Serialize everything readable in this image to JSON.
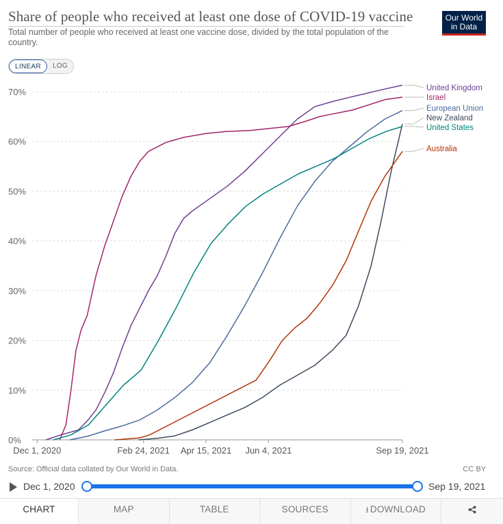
{
  "header": {
    "title": "Share of people who received at least one dose of COVID-19 vaccine",
    "subtitle": "Total number of people who received at least one vaccine dose, divided by the total population of the country.",
    "logo_line1": "Our World",
    "logo_line2": "in Data"
  },
  "scale": {
    "linear_label": "LINEAR",
    "log_label": "LOG",
    "selected": "linear"
  },
  "chart_data": {
    "type": "line",
    "title": "Share of people who received at least one dose of COVID-19 vaccine",
    "xlabel": "",
    "ylabel": "",
    "x_range": [
      "2020-11-27",
      "2021-09-19"
    ],
    "ylim": [
      0,
      70
    ],
    "y_ticks": [
      0,
      10,
      20,
      30,
      40,
      50,
      60,
      70
    ],
    "y_tick_labels": [
      "0%",
      "10%",
      "20%",
      "30%",
      "40%",
      "50%",
      "60%",
      "70%"
    ],
    "x_ticks": [
      "2020-12-01",
      "2021-02-24",
      "2021-04-15",
      "2021-06-04",
      "2021-09-19"
    ],
    "x_tick_labels": [
      "Dec 1, 2020",
      "Feb 24, 2021",
      "Apr 15, 2021",
      "Jun 4, 2021",
      "Sep 19, 2021"
    ],
    "grid": "horizontal dashed",
    "legend": "right, labels at line ends",
    "series": [
      {
        "name": "United Kingdom",
        "color": "#6d3e91",
        "points": [
          [
            "2020-12-08",
            0
          ],
          [
            "2020-12-20",
            1.0
          ],
          [
            "2021-01-03",
            2.0
          ],
          [
            "2021-01-10",
            3.8
          ],
          [
            "2021-01-17",
            6.0
          ],
          [
            "2021-01-24",
            9.5
          ],
          [
            "2021-01-31",
            13.5
          ],
          [
            "2021-02-07",
            18.5
          ],
          [
            "2021-02-14",
            23.0
          ],
          [
            "2021-02-21",
            26.5
          ],
          [
            "2021-02-28",
            30.0
          ],
          [
            "2021-03-07",
            33.0
          ],
          [
            "2021-03-14",
            37.0
          ],
          [
            "2021-03-21",
            41.5
          ],
          [
            "2021-03-28",
            44.5
          ],
          [
            "2021-04-04",
            46.0
          ],
          [
            "2021-04-18",
            48.5
          ],
          [
            "2021-05-02",
            51.0
          ],
          [
            "2021-05-16",
            54.0
          ],
          [
            "2021-05-30",
            57.5
          ],
          [
            "2021-06-13",
            61.0
          ],
          [
            "2021-06-27",
            64.5
          ],
          [
            "2021-07-11",
            67.0
          ],
          [
            "2021-07-25",
            68.0
          ],
          [
            "2021-08-15",
            69.3
          ],
          [
            "2021-09-01",
            70.3
          ],
          [
            "2021-09-19",
            71.3
          ]
        ]
      },
      {
        "name": "Israel",
        "color": "#a2246b",
        "points": [
          [
            "2020-12-19",
            0
          ],
          [
            "2020-12-24",
            3.0
          ],
          [
            "2020-12-28",
            10.0
          ],
          [
            "2021-01-01",
            18.0
          ],
          [
            "2021-01-05",
            22.0
          ],
          [
            "2021-01-10",
            25.0
          ],
          [
            "2021-01-17",
            33.0
          ],
          [
            "2021-01-24",
            39.0
          ],
          [
            "2021-01-31",
            44.0
          ],
          [
            "2021-02-07",
            49.0
          ],
          [
            "2021-02-14",
            53.0
          ],
          [
            "2021-02-21",
            56.0
          ],
          [
            "2021-02-28",
            58.0
          ],
          [
            "2021-03-14",
            59.8
          ],
          [
            "2021-03-28",
            60.8
          ],
          [
            "2021-04-15",
            61.6
          ],
          [
            "2021-05-01",
            62.0
          ],
          [
            "2021-05-20",
            62.2
          ],
          [
            "2021-06-01",
            62.5
          ],
          [
            "2021-06-20",
            63.0
          ],
          [
            "2021-07-03",
            64.0
          ],
          [
            "2021-07-15",
            65.0
          ],
          [
            "2021-07-25",
            65.5
          ],
          [
            "2021-08-10",
            66.3
          ],
          [
            "2021-08-25",
            67.5
          ],
          [
            "2021-09-05",
            68.4
          ],
          [
            "2021-09-19",
            68.9
          ]
        ]
      },
      {
        "name": "European Union",
        "color": "#4c6a9c",
        "points": [
          [
            "2020-12-27",
            0
          ],
          [
            "2021-01-10",
            0.7
          ],
          [
            "2021-01-24",
            1.8
          ],
          [
            "2021-02-07",
            2.8
          ],
          [
            "2021-02-21",
            4.0
          ],
          [
            "2021-03-07",
            6.0
          ],
          [
            "2021-03-21",
            8.5
          ],
          [
            "2021-04-04",
            11.5
          ],
          [
            "2021-04-18",
            15.5
          ],
          [
            "2021-05-02",
            21.0
          ],
          [
            "2021-05-16",
            27.0
          ],
          [
            "2021-05-30",
            33.5
          ],
          [
            "2021-06-13",
            40.5
          ],
          [
            "2021-06-27",
            47.0
          ],
          [
            "2021-07-11",
            52.0
          ],
          [
            "2021-07-25",
            56.0
          ],
          [
            "2021-08-08",
            59.0
          ],
          [
            "2021-08-22",
            62.0
          ],
          [
            "2021-09-05",
            64.5
          ],
          [
            "2021-09-19",
            66.2
          ]
        ]
      },
      {
        "name": "New Zealand",
        "color": "#3b4a5e",
        "points": [
          [
            "2021-02-20",
            0
          ],
          [
            "2021-03-07",
            0.3
          ],
          [
            "2021-03-21",
            0.8
          ],
          [
            "2021-04-04",
            2.0
          ],
          [
            "2021-04-18",
            3.5
          ],
          [
            "2021-05-02",
            5.0
          ],
          [
            "2021-05-16",
            6.5
          ],
          [
            "2021-05-30",
            8.5
          ],
          [
            "2021-06-13",
            11.0
          ],
          [
            "2021-06-27",
            13.0
          ],
          [
            "2021-07-11",
            15.0
          ],
          [
            "2021-07-25",
            18.0
          ],
          [
            "2021-08-05",
            21.0
          ],
          [
            "2021-08-15",
            27.0
          ],
          [
            "2021-08-25",
            35.0
          ],
          [
            "2021-09-02",
            44.0
          ],
          [
            "2021-09-10",
            54.0
          ],
          [
            "2021-09-19",
            63.5
          ]
        ]
      },
      {
        "name": "United States",
        "color": "#00847e",
        "points": [
          [
            "2020-12-14",
            0
          ],
          [
            "2020-12-28",
            1.0
          ],
          [
            "2021-01-11",
            3.0
          ],
          [
            "2021-01-25",
            7.0
          ],
          [
            "2021-02-08",
            11.0
          ],
          [
            "2021-02-22",
            14.0
          ],
          [
            "2021-03-08",
            20.0
          ],
          [
            "2021-03-22",
            26.5
          ],
          [
            "2021-04-05",
            33.5
          ],
          [
            "2021-04-19",
            39.5
          ],
          [
            "2021-05-03",
            43.5
          ],
          [
            "2021-05-17",
            47.0
          ],
          [
            "2021-05-31",
            49.5
          ],
          [
            "2021-06-14",
            51.5
          ],
          [
            "2021-06-28",
            53.5
          ],
          [
            "2021-07-12",
            55.0
          ],
          [
            "2021-07-26",
            56.5
          ],
          [
            "2021-08-09",
            58.5
          ],
          [
            "2021-08-23",
            60.5
          ],
          [
            "2021-09-06",
            62.0
          ],
          [
            "2021-09-19",
            63.0
          ]
        ]
      },
      {
        "name": "Australia",
        "color": "#b13507",
        "points": [
          [
            "2021-02-01",
            0
          ],
          [
            "2021-02-21",
            0.4
          ],
          [
            "2021-03-01",
            1.0
          ],
          [
            "2021-05-25",
            12.0
          ],
          [
            "2021-06-05",
            16.0
          ],
          [
            "2021-06-15",
            20.0
          ],
          [
            "2021-06-25",
            22.5
          ],
          [
            "2021-07-05",
            24.5
          ],
          [
            "2021-07-15",
            27.5
          ],
          [
            "2021-07-25",
            31.0
          ],
          [
            "2021-08-05",
            36.0
          ],
          [
            "2021-08-15",
            42.0
          ],
          [
            "2021-08-25",
            48.0
          ],
          [
            "2021-09-05",
            53.0
          ],
          [
            "2021-09-19",
            58.0
          ]
        ]
      }
    ]
  },
  "footer": {
    "source": "Source: Official data collated by Our World in Data.",
    "license": "CC BY"
  },
  "timeline": {
    "start_label": "Dec 1, 2020",
    "end_label": "Sep 19, 2021"
  },
  "tabs": [
    {
      "label": "CHART",
      "active": true
    },
    {
      "label": "MAP",
      "active": false
    },
    {
      "label": "TABLE",
      "active": false
    },
    {
      "label": "SOURCES",
      "active": false
    },
    {
      "label": "DOWNLOAD",
      "active": false
    }
  ]
}
